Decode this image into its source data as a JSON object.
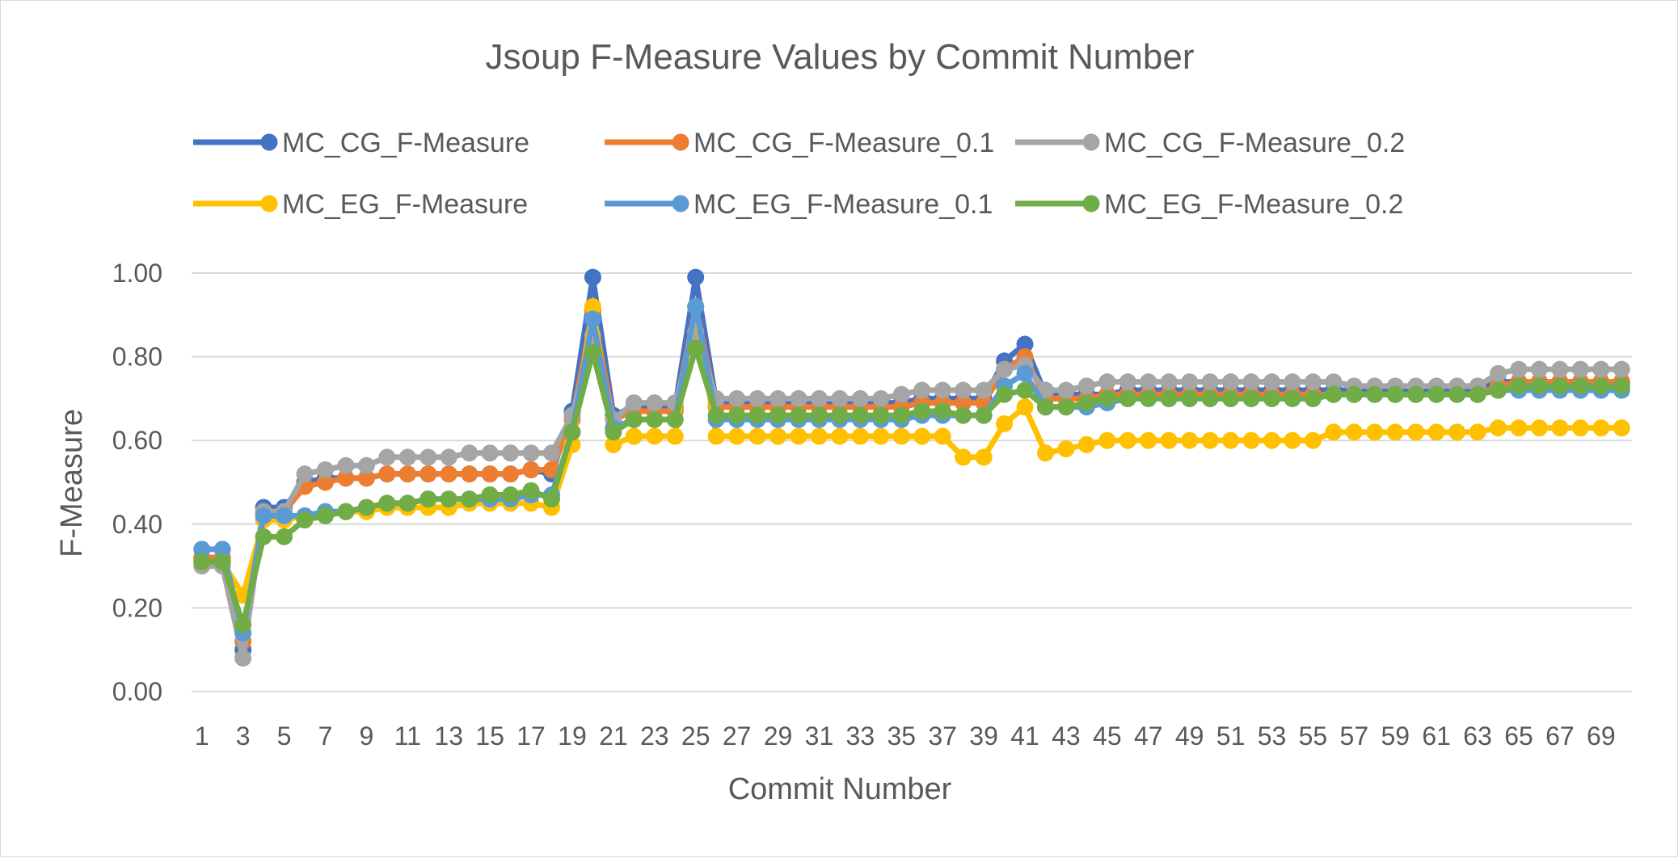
{
  "chart_data": {
    "type": "line",
    "title": "Jsoup F-Measure Values by Commit Number",
    "xlabel": "Commit Number",
    "ylabel": "F-Measure",
    "ylim": [
      0,
      1
    ],
    "yticks": [
      "0.00",
      "0.20",
      "0.40",
      "0.60",
      "0.80",
      "1.00"
    ],
    "x_tick_labels": [
      "1",
      "3",
      "5",
      "7",
      "9",
      "11",
      "13",
      "15",
      "17",
      "19",
      "21",
      "23",
      "25",
      "27",
      "29",
      "31",
      "33",
      "35",
      "37",
      "39",
      "41",
      "43",
      "45",
      "47",
      "49",
      "51",
      "53",
      "55",
      "57",
      "59",
      "61",
      "63",
      "65",
      "67",
      "69"
    ],
    "grid": true,
    "legend_position": "top",
    "x": [
      1,
      2,
      3,
      4,
      5,
      6,
      7,
      8,
      9,
      10,
      11,
      12,
      13,
      14,
      15,
      16,
      17,
      18,
      19,
      20,
      21,
      22,
      23,
      24,
      25,
      26,
      27,
      28,
      29,
      30,
      31,
      32,
      33,
      34,
      35,
      36,
      37,
      38,
      39,
      40,
      41,
      42,
      43,
      44,
      45,
      46,
      47,
      48,
      49,
      50,
      51,
      52,
      53,
      54,
      55,
      56,
      57,
      58,
      59,
      60,
      61,
      62,
      63,
      64,
      65,
      66,
      67,
      68,
      69,
      70
    ],
    "series": [
      {
        "name": "MC_CG_F-Measure",
        "color": "#4472C4",
        "values": [
          0.32,
          0.32,
          0.1,
          0.44,
          0.44,
          0.5,
          0.51,
          0.51,
          0.51,
          0.52,
          0.52,
          0.52,
          0.52,
          0.52,
          0.52,
          0.52,
          0.53,
          0.52,
          0.67,
          0.99,
          0.66,
          0.68,
          0.68,
          0.68,
          0.99,
          0.69,
          0.69,
          0.69,
          0.69,
          0.69,
          0.69,
          0.69,
          0.69,
          0.69,
          0.69,
          0.7,
          0.7,
          0.7,
          0.7,
          0.79,
          0.83,
          0.71,
          0.71,
          0.71,
          0.71,
          0.72,
          0.72,
          0.72,
          0.72,
          0.72,
          0.72,
          0.72,
          0.72,
          0.72,
          0.72,
          0.72,
          0.72,
          0.72,
          0.72,
          0.72,
          0.72,
          0.72,
          0.72,
          0.74,
          0.74,
          0.74,
          0.74,
          0.74,
          0.74,
          0.74
        ]
      },
      {
        "name": "MC_CG_F-Measure_0.1",
        "color": "#ED7D31",
        "values": [
          0.32,
          0.32,
          0.12,
          0.43,
          0.43,
          0.49,
          0.5,
          0.51,
          0.51,
          0.52,
          0.52,
          0.52,
          0.52,
          0.52,
          0.52,
          0.52,
          0.53,
          0.53,
          0.65,
          0.91,
          0.65,
          0.67,
          0.67,
          0.67,
          0.92,
          0.68,
          0.68,
          0.68,
          0.68,
          0.68,
          0.68,
          0.68,
          0.68,
          0.68,
          0.68,
          0.69,
          0.69,
          0.69,
          0.69,
          0.77,
          0.8,
          0.7,
          0.7,
          0.7,
          0.71,
          0.71,
          0.71,
          0.71,
          0.71,
          0.71,
          0.71,
          0.71,
          0.71,
          0.71,
          0.71,
          0.71,
          0.71,
          0.71,
          0.71,
          0.71,
          0.71,
          0.71,
          0.71,
          0.73,
          0.74,
          0.74,
          0.74,
          0.74,
          0.74,
          0.74
        ]
      },
      {
        "name": "MC_CG_F-Measure_0.2",
        "color": "#A5A5A5",
        "values": [
          0.3,
          0.3,
          0.08,
          0.43,
          0.43,
          0.52,
          0.53,
          0.54,
          0.54,
          0.56,
          0.56,
          0.56,
          0.56,
          0.57,
          0.57,
          0.57,
          0.57,
          0.57,
          0.66,
          0.85,
          0.65,
          0.69,
          0.69,
          0.69,
          0.86,
          0.7,
          0.7,
          0.7,
          0.7,
          0.7,
          0.7,
          0.7,
          0.7,
          0.7,
          0.71,
          0.72,
          0.72,
          0.72,
          0.72,
          0.77,
          0.78,
          0.72,
          0.72,
          0.73,
          0.74,
          0.74,
          0.74,
          0.74,
          0.74,
          0.74,
          0.74,
          0.74,
          0.74,
          0.74,
          0.74,
          0.74,
          0.73,
          0.73,
          0.73,
          0.73,
          0.73,
          0.73,
          0.73,
          0.76,
          0.77,
          0.77,
          0.77,
          0.77,
          0.77,
          0.77
        ]
      },
      {
        "name": "MC_EG_F-Measure",
        "color": "#FFC000",
        "values": [
          0.31,
          0.31,
          0.23,
          0.41,
          0.41,
          0.42,
          0.43,
          0.43,
          0.43,
          0.44,
          0.44,
          0.44,
          0.44,
          0.45,
          0.45,
          0.45,
          0.45,
          0.44,
          0.59,
          0.92,
          0.59,
          0.61,
          0.61,
          0.61,
          0.92,
          0.61,
          0.61,
          0.61,
          0.61,
          0.61,
          0.61,
          0.61,
          0.61,
          0.61,
          0.61,
          0.61,
          0.61,
          0.56,
          0.56,
          0.64,
          0.68,
          0.57,
          0.58,
          0.59,
          0.6,
          0.6,
          0.6,
          0.6,
          0.6,
          0.6,
          0.6,
          0.6,
          0.6,
          0.6,
          0.6,
          0.62,
          0.62,
          0.62,
          0.62,
          0.62,
          0.62,
          0.62,
          0.62,
          0.63,
          0.63,
          0.63,
          0.63,
          0.63,
          0.63,
          0.63
        ]
      },
      {
        "name": "MC_EG_F-Measure_0.1",
        "color": "#5B9BD5",
        "values": [
          0.34,
          0.34,
          0.14,
          0.42,
          0.42,
          0.42,
          0.43,
          0.43,
          0.44,
          0.45,
          0.45,
          0.46,
          0.46,
          0.46,
          0.46,
          0.46,
          0.47,
          0.47,
          0.62,
          0.89,
          0.63,
          0.65,
          0.65,
          0.65,
          0.92,
          0.65,
          0.65,
          0.65,
          0.65,
          0.65,
          0.65,
          0.65,
          0.65,
          0.65,
          0.65,
          0.66,
          0.66,
          0.66,
          0.66,
          0.73,
          0.76,
          0.68,
          0.68,
          0.68,
          0.69,
          0.7,
          0.7,
          0.7,
          0.7,
          0.7,
          0.7,
          0.7,
          0.7,
          0.7,
          0.7,
          0.71,
          0.71,
          0.71,
          0.71,
          0.71,
          0.71,
          0.71,
          0.71,
          0.72,
          0.72,
          0.72,
          0.72,
          0.72,
          0.72,
          0.72
        ]
      },
      {
        "name": "MC_EG_F-Measure_0.2",
        "color": "#70AD47",
        "values": [
          0.31,
          0.31,
          0.16,
          0.37,
          0.37,
          0.41,
          0.42,
          0.43,
          0.44,
          0.45,
          0.45,
          0.46,
          0.46,
          0.46,
          0.47,
          0.47,
          0.48,
          0.46,
          0.62,
          0.81,
          0.62,
          0.65,
          0.65,
          0.65,
          0.82,
          0.66,
          0.66,
          0.66,
          0.66,
          0.66,
          0.66,
          0.66,
          0.66,
          0.66,
          0.66,
          0.67,
          0.67,
          0.66,
          0.66,
          0.71,
          0.72,
          0.68,
          0.68,
          0.69,
          0.7,
          0.7,
          0.7,
          0.7,
          0.7,
          0.7,
          0.7,
          0.7,
          0.7,
          0.7,
          0.7,
          0.71,
          0.71,
          0.71,
          0.71,
          0.71,
          0.71,
          0.71,
          0.71,
          0.72,
          0.73,
          0.73,
          0.73,
          0.73,
          0.73,
          0.73
        ]
      }
    ]
  }
}
